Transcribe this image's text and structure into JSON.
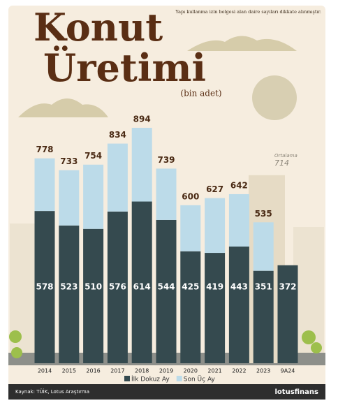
{
  "chart_data": {
    "type": "stacked_bar",
    "title": [
      "Konut",
      "Üretimi"
    ],
    "subtitle": "(bin adet)",
    "note": "Yapı kullanma izin belgesi alan daire sayıları dikkate alınmıştır.",
    "categories": [
      "2014",
      "2015",
      "2016",
      "2017",
      "2018",
      "2019",
      "2020",
      "2021",
      "2022",
      "2023",
      "9A24"
    ],
    "series": [
      {
        "name": "İlk Dokuz Ay",
        "color": "#354a4f",
        "values": [
          578,
          523,
          510,
          576,
          614,
          544,
          425,
          419,
          443,
          351,
          372
        ]
      },
      {
        "name": "Son Üç Ay",
        "color": "#bcdbe9",
        "values": [
          200,
          210,
          244,
          258,
          280,
          195,
          175,
          208,
          199,
          184,
          null
        ]
      }
    ],
    "totals": [
      778,
      733,
      754,
      834,
      894,
      739,
      600,
      627,
      642,
      535,
      null
    ],
    "average": {
      "label": "Ortalama",
      "value": 714
    },
    "ylim": [
      0,
      1000
    ],
    "source": "Kaynak: TÜİK, Lotus Araştırma",
    "brand": "lotusfinans"
  }
}
